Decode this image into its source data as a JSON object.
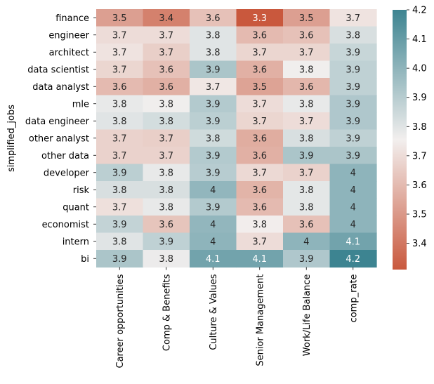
{
  "chart_data": {
    "type": "heatmap",
    "title": "",
    "xlabel": "",
    "ylabel": "simplified_jobs",
    "columns": [
      "Career opportunities",
      "Comp & Benefits",
      "Culture & Values",
      "Senior Management",
      "Work/Life Balance",
      "comp_rate"
    ],
    "rows": [
      "finance",
      "engineer",
      "architect",
      "data scientist",
      "data analyst",
      "mle",
      "data engineer",
      "other analyst",
      "other data",
      "developer",
      "risk",
      "quant",
      "economist",
      "intern",
      "bi"
    ],
    "values": [
      [
        3.5,
        3.4,
        3.6,
        3.3,
        3.5,
        3.7
      ],
      [
        3.7,
        3.7,
        3.8,
        3.6,
        3.6,
        3.8
      ],
      [
        3.7,
        3.7,
        3.8,
        3.7,
        3.7,
        3.9
      ],
      [
        3.7,
        3.6,
        3.9,
        3.6,
        3.8,
        3.9
      ],
      [
        3.6,
        3.6,
        3.7,
        3.5,
        3.6,
        3.9
      ],
      [
        3.8,
        3.8,
        3.9,
        3.7,
        3.8,
        3.9
      ],
      [
        3.8,
        3.8,
        3.9,
        3.7,
        3.7,
        3.9
      ],
      [
        3.7,
        3.7,
        3.8,
        3.6,
        3.8,
        3.9
      ],
      [
        3.7,
        3.7,
        3.9,
        3.6,
        3.9,
        3.9
      ],
      [
        3.9,
        3.8,
        3.9,
        3.7,
        3.7,
        4
      ],
      [
        3.8,
        3.8,
        4,
        3.6,
        3.8,
        4
      ],
      [
        3.7,
        3.8,
        3.9,
        3.6,
        3.8,
        4
      ],
      [
        3.9,
        3.6,
        4,
        3.8,
        3.6,
        4
      ],
      [
        3.8,
        3.9,
        4,
        3.7,
        4,
        4.1
      ],
      [
        3.9,
        3.8,
        4.1,
        4.1,
        3.9,
        4.2
      ]
    ],
    "shades": [
      [
        3.52,
        3.43,
        3.62,
        3.31,
        3.52,
        3.72
      ],
      [
        3.7,
        3.7,
        3.8,
        3.6,
        3.62,
        3.82
      ],
      [
        3.72,
        3.66,
        3.8,
        3.68,
        3.68,
        3.86
      ],
      [
        3.68,
        3.62,
        3.93,
        3.57,
        3.76,
        3.88
      ],
      [
        3.6,
        3.57,
        3.73,
        3.53,
        3.59,
        3.88
      ],
      [
        3.78,
        3.76,
        3.91,
        3.7,
        3.78,
        3.92
      ],
      [
        3.8,
        3.83,
        3.89,
        3.68,
        3.7,
        3.92
      ],
      [
        3.67,
        3.66,
        3.84,
        3.56,
        3.82,
        3.88
      ],
      [
        3.67,
        3.67,
        3.91,
        3.57,
        3.93,
        3.93
      ],
      [
        3.89,
        3.78,
        3.9,
        3.69,
        3.67,
        4.0
      ],
      [
        3.82,
        3.82,
        3.99,
        3.58,
        3.79,
        4.0
      ],
      [
        3.71,
        3.78,
        3.91,
        3.6,
        3.79,
        4.0
      ],
      [
        3.87,
        3.63,
        3.99,
        3.75,
        3.62,
        4.0
      ],
      [
        3.8,
        3.88,
        4.0,
        3.7,
        4.0,
        4.07
      ],
      [
        3.93,
        3.77,
        4.07,
        4.07,
        3.92,
        4.2
      ]
    ],
    "colorbar": {
      "min": 3.31,
      "max": 4.2,
      "ticks": [
        "3.4",
        "3.5",
        "3.6",
        "3.7",
        "3.8",
        "3.9",
        "4.0",
        "4.1",
        "4.2"
      ],
      "low_color": "#c9583d",
      "mid_color": "#f2efee",
      "high_color": "#3d8491"
    }
  }
}
